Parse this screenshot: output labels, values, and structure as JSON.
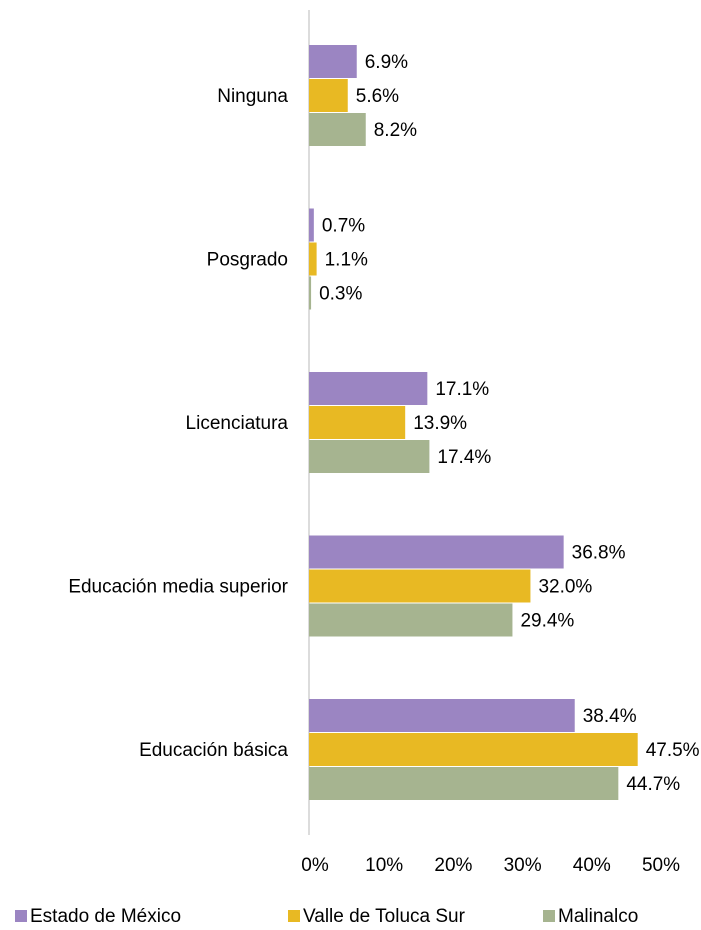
{
  "chart_data": {
    "type": "bar",
    "orientation": "horizontal",
    "categories": [
      "Ninguna",
      "Posgrado",
      "Licenciatura",
      "Educación media superior",
      "Educación básica"
    ],
    "series": [
      {
        "name": "Estado de México",
        "color": "#9b85c2",
        "values": [
          6.9,
          0.7,
          17.1,
          36.8,
          38.4
        ],
        "value_labels": [
          "6.9%",
          "0.7%",
          "17.1%",
          "36.8%",
          "38.4%"
        ]
      },
      {
        "name": "Valle de Toluca Sur",
        "color": "#e8b923",
        "values": [
          5.6,
          1.1,
          13.9,
          32.0,
          47.5
        ],
        "value_labels": [
          "5.6%",
          "1.1%",
          "13.9%",
          "32.0%",
          "47.5%"
        ]
      },
      {
        "name": "Malinalco",
        "color": "#a6b490",
        "values": [
          8.2,
          0.3,
          17.4,
          29.4,
          44.7
        ],
        "value_labels": [
          "8.2%",
          "0.3%",
          "17.4%",
          "29.4%",
          "44.7%"
        ]
      }
    ],
    "xlim": [
      0,
      50
    ],
    "xticks": [
      {
        "value": 0,
        "label": "0%"
      },
      {
        "value": 10,
        "label": "10%"
      },
      {
        "value": 20,
        "label": "20%"
      },
      {
        "value": 30,
        "label": "30%"
      },
      {
        "value": 40,
        "label": "40%"
      },
      {
        "value": 50,
        "label": "50%"
      }
    ],
    "legend": "bottom"
  }
}
